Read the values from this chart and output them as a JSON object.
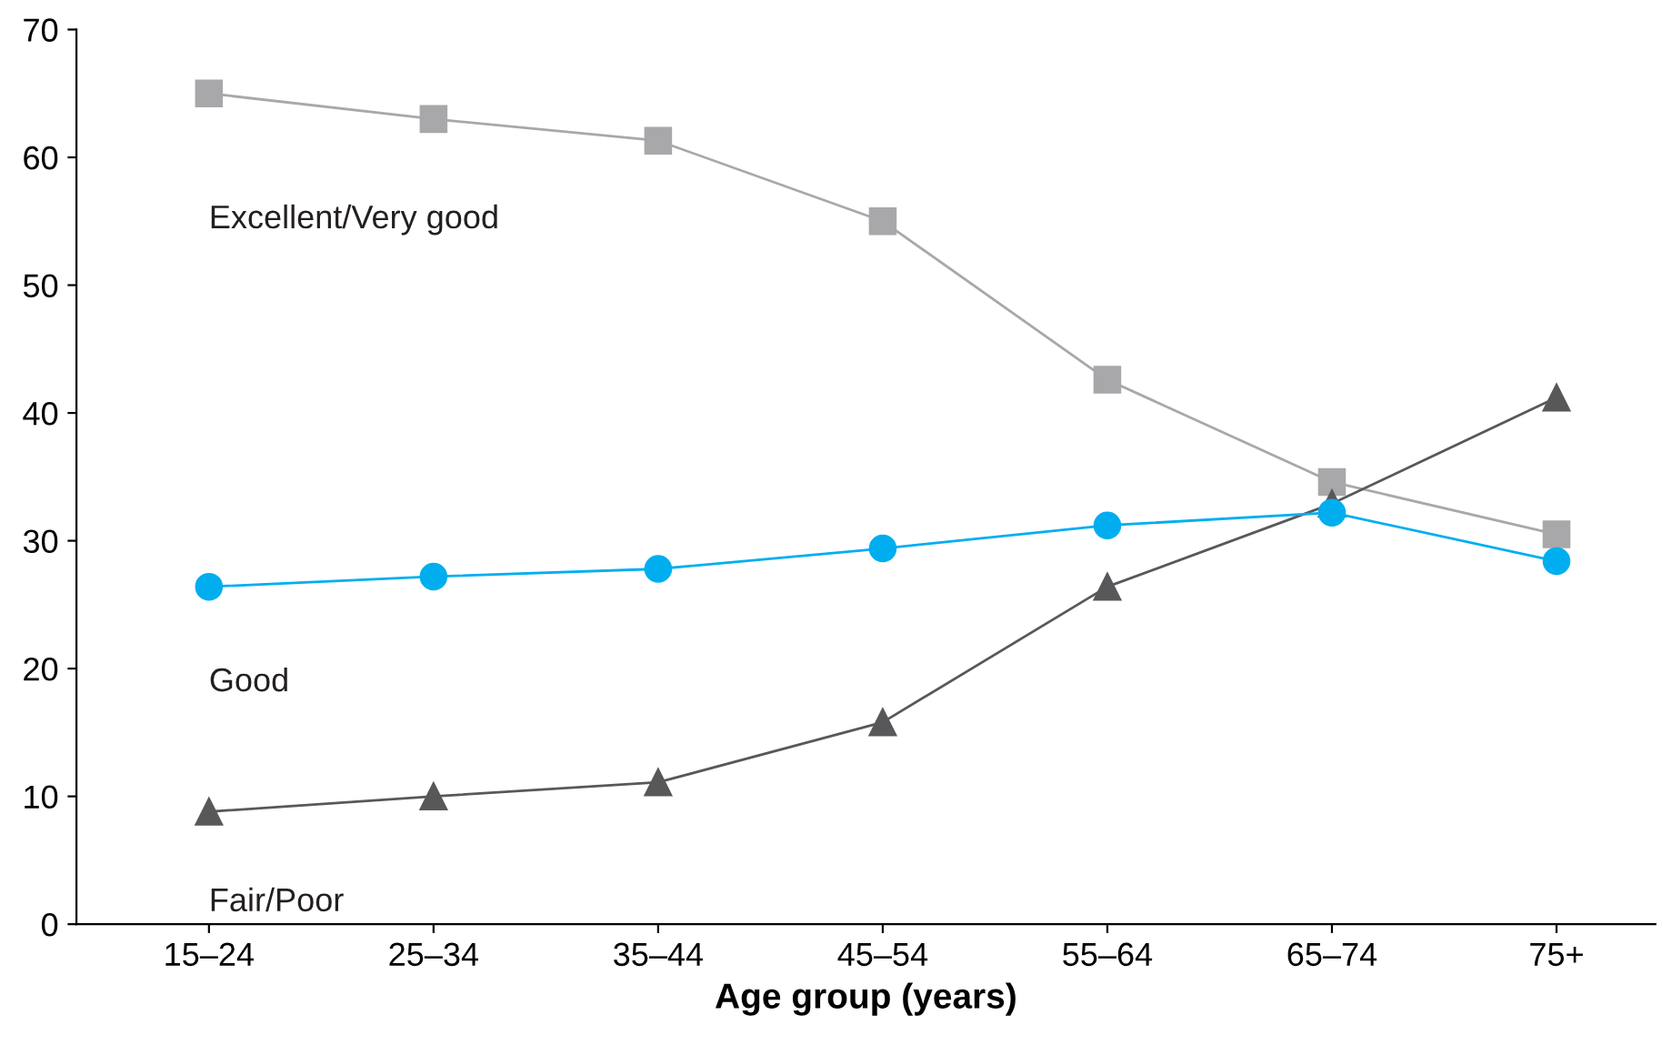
{
  "chart_data": {
    "type": "line",
    "xlabel": "Age group (years)",
    "categories": [
      "15–24",
      "25–34",
      "35–44",
      "45–54",
      "55–64",
      "65–74",
      "75+"
    ],
    "series": [
      {
        "name": "Excellent/Very good",
        "color": "#a8a8aa",
        "marker": "square",
        "values": [
          65.0,
          63.0,
          61.3,
          55.0,
          42.6,
          34.6,
          30.5
        ]
      },
      {
        "name": "Good",
        "color": "#00aeef",
        "marker": "circle",
        "values": [
          26.4,
          27.2,
          27.8,
          29.4,
          31.2,
          32.2,
          28.4
        ]
      },
      {
        "name": "Fair/Poor",
        "color": "#58585a",
        "marker": "triangle",
        "values": [
          8.8,
          10.0,
          11.1,
          15.8,
          26.4,
          32.9,
          41.2
        ]
      }
    ],
    "ylim": [
      0,
      70
    ],
    "yticks": [
      0,
      10,
      20,
      30,
      40,
      50,
      60,
      70
    ],
    "grid": false,
    "legend": false,
    "line_style": "solid"
  }
}
